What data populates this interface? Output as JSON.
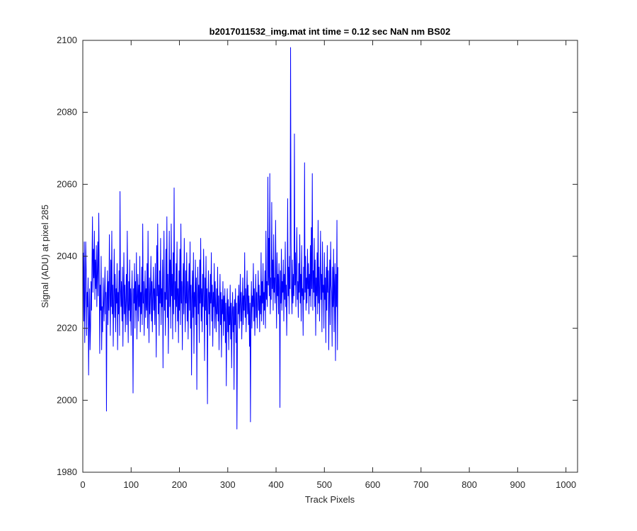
{
  "chart_data": {
    "type": "line",
    "title": "b2017011532_img.mat int time = 0.12 sec  NaN nm BS02",
    "xlabel": "Track Pixels",
    "ylabel": "Signal (ADU) at pixel 285",
    "xlim": [
      0,
      1024
    ],
    "ylim": [
      1980,
      2100
    ],
    "xticks": [
      0,
      100,
      200,
      300,
      400,
      500,
      600,
      700,
      800,
      900,
      1000
    ],
    "yticks": [
      1980,
      2000,
      2020,
      2040,
      2060,
      2080,
      2100
    ],
    "xtick_labels": [
      "0",
      "100",
      "200",
      "300",
      "400",
      "500",
      "600",
      "700",
      "800",
      "900",
      "1000"
    ],
    "ytick_labels": [
      "1980",
      "2000",
      "2020",
      "2040",
      "2060",
      "2080",
      "2100"
    ],
    "grid": false,
    "legend": "none",
    "line_color": "#0000ff",
    "series": [
      {
        "x_start": 1,
        "x_step": 1,
        "values": [
          2041,
          2022,
          2044,
          2016,
          2028,
          2044,
          2036,
          2018,
          2030,
          2026,
          2034,
          2007,
          2022,
          2031,
          2014,
          2020,
          2033,
          2025,
          2038,
          2051,
          2030,
          2042,
          2034,
          2047,
          2028,
          2039,
          2031,
          2043,
          2026,
          2035,
          2044,
          2029,
          2052,
          2036,
          2013,
          2032,
          2025,
          2040,
          2014,
          2026,
          2019,
          2034,
          2027,
          2022,
          2031,
          2037,
          2024,
          2030,
          1997,
          2028,
          2036,
          2021,
          2033,
          2025,
          2046,
          2030,
          2018,
          2039,
          2026,
          2047,
          2024,
          2032,
          2015,
          2029,
          2042,
          2023,
          2035,
          2019,
          2031,
          2027,
          2038,
          2014,
          2030,
          2024,
          2036,
          2018,
          2058,
          2031,
          2026,
          2033,
          2022,
          2037,
          2015,
          2029,
          2041,
          2024,
          2032,
          2019,
          2027,
          2035,
          2021,
          2047,
          2028,
          2016,
          2033,
          2025,
          2039,
          2022,
          2031,
          2018,
          2029,
          2036,
          2023,
          2002,
          2031,
          2027,
          2038,
          2020,
          2033,
          2025,
          2041,
          2017,
          2029,
          2035,
          2022,
          2032,
          2026,
          2040,
          2019,
          2030,
          2024,
          2037,
          2021,
          2049,
          2027,
          2033,
          2018,
          2029,
          2036,
          2023,
          2031,
          2025,
          2038,
          2020,
          2047,
          2028,
          2016,
          2034,
          2024,
          2030,
          2040,
          2022,
          2033,
          2019,
          2029,
          2037,
          2025,
          2031,
          2021,
          2038,
          2026,
          2012,
          2043,
          2029,
          2049,
          2024,
          2032,
          2018,
          2036,
          2027,
          2045,
          2021,
          2031,
          2026,
          2039,
          2009,
          2033,
          2047,
          2025,
          2030,
          2018,
          2042,
          2028,
          2051,
          2023,
          2035,
          2013,
          2030,
          2047,
          2026,
          2039,
          2020,
          2049,
          2029,
          2035,
          2017,
          2041,
          2024,
          2059,
          2028,
          2033,
          2019,
          2038,
          2026,
          2044,
          2022,
          2031,
          2016,
          2036,
          2025,
          2042,
          2021,
          2049,
          2027,
          2033,
          2014,
          2031,
          2038,
          2024,
          2045,
          2029,
          2019,
          2036,
          2027,
          2041,
          2022,
          2033,
          2017,
          2030,
          2038,
          2025,
          2044,
          2020,
          2032,
          2007,
          2028,
          2036,
          2023,
          2041,
          2013,
          2030,
          2026,
          2039,
          2021,
          2034,
          2003,
          2028,
          2037,
          2024,
          2032,
          2016,
          2039,
          2027,
          2045,
          2022,
          2031,
          2019,
          2035,
          2026,
          2042,
          2029,
          2011,
          2034,
          2025,
          2040,
          2021,
          2031,
          1999,
          2028,
          2036,
          2024,
          2030,
          2018,
          2035,
          2027,
          2041,
          2022,
          2032,
          2015,
          2030,
          2026,
          2038,
          2020,
          2033,
          2025,
          2019,
          2031,
          2024,
          2037,
          2022,
          2029,
          2014,
          2027,
          2035,
          2021,
          2030,
          2012,
          2028,
          2024,
          2033,
          2018,
          2029,
          2022,
          2031,
          2016,
          2027,
          2004,
          2024,
          2031,
          2019,
          2028,
          2014,
          2026,
          2021,
          2032,
          2017,
          2027,
          2009,
          2024,
          2030,
          2019,
          2026,
          2003,
          2028,
          2021,
          2031,
          2016,
          2027,
          1992,
          2018,
          2029,
          2024,
          2032,
          2020,
          2027,
          2035,
          2022,
          2030,
          2017,
          2026,
          2034,
          2021,
          2029,
          2025,
          2041,
          2023,
          2031,
          2019,
          2028,
          2036,
          2024,
          2032,
          2021,
          2029,
          2015,
          2027,
          1994,
          2024,
          2033,
          2020,
          2029,
          2026,
          2038,
          2022,
          2031,
          2018,
          2027,
          2035,
          2023,
          2030,
          2020,
          2028,
          2036,
          2025,
          2032,
          2019,
          2029,
          2024,
          2041,
          2022,
          2033,
          2027,
          2038,
          2021,
          2030,
          2025,
          2036,
          2020,
          2047,
          2028,
          2033,
          2026,
          2062,
          2032,
          2045,
          2029,
          2063,
          2024,
          2034,
          2028,
          2055,
          2031,
          2039,
          2025,
          2046,
          2030,
          2034,
          2027,
          2050,
          2033,
          2020,
          2041,
          2029,
          2035,
          2024,
          2038,
          2031,
          1998,
          2036,
          2027,
          2042,
          2025,
          2033,
          2030,
          2039,
          2022,
          2035,
          2028,
          2044,
          2026,
          2032,
          2018,
          2030,
          2056,
          2029,
          2037,
          2024,
          2040,
          2031,
          2098,
          2044,
          2030,
          2024,
          2039,
          2027,
          2035,
          2029,
          2074,
          2032,
          2041,
          2026,
          2037,
          2048,
          2028,
          2033,
          2023,
          2038,
          2030,
          2046,
          2027,
          2035,
          2022,
          2043,
          2029,
          2031,
          2018,
          2037,
          2028,
          2066,
          2030,
          2040,
          2025,
          2034,
          2027,
          2042,
          2031,
          2038,
          2024,
          2035,
          2029,
          2043,
          2026,
          2048,
          2031,
          2063,
          2025,
          2036,
          2030,
          2045,
          2026,
          2039,
          2018,
          2034,
          2029,
          2041,
          2024,
          2050,
          2027,
          2037,
          2022,
          2033,
          2047,
          2028,
          2035,
          2019,
          2044,
          2030,
          2032,
          2020,
          2041,
          2028,
          2034,
          2016,
          2037,
          2025,
          2043,
          2030,
          2036,
          2014,
          2029,
          2039,
          2021,
          2044,
          2032,
          2030,
          2015,
          2037,
          2026,
          2042,
          2019,
          2033,
          2038,
          2011,
          2035,
          2026,
          2050,
          2014,
          2037
        ]
      }
    ]
  }
}
